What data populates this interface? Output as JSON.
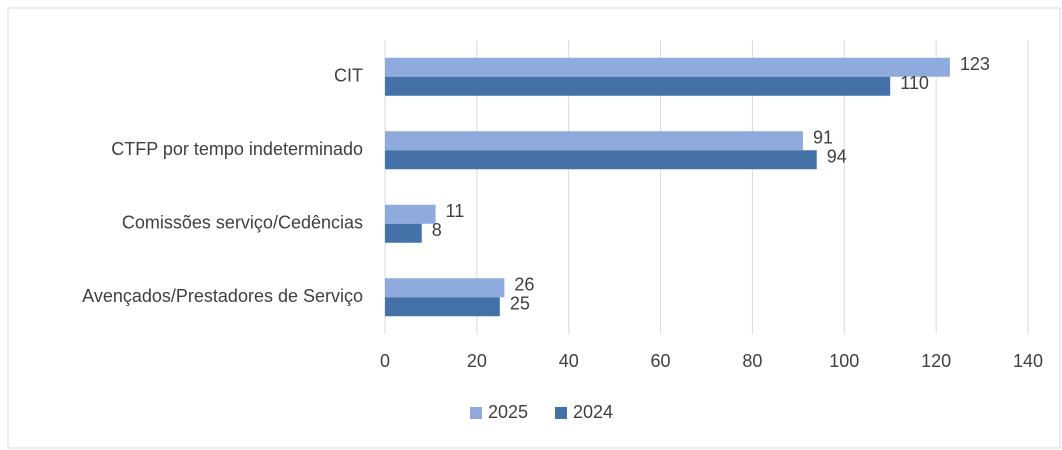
{
  "chart_data": {
    "type": "bar",
    "categories": [
      "CIT",
      "CTFP por tempo indeterminado",
      "Comissões serviço/Cedências",
      "Avençados/Prestadores de Serviço"
    ],
    "series": [
      {
        "name": "2025",
        "color": "#8faadc",
        "values": [
          123,
          91,
          11,
          26
        ]
      },
      {
        "name": "2024",
        "color": "#4472a8",
        "values": [
          110,
          94,
          8,
          25
        ]
      }
    ],
    "xlim": [
      0,
      140
    ],
    "xticks": [
      0,
      20,
      40,
      60,
      80,
      100,
      120,
      140
    ],
    "grid": true,
    "legend": "bottom"
  }
}
